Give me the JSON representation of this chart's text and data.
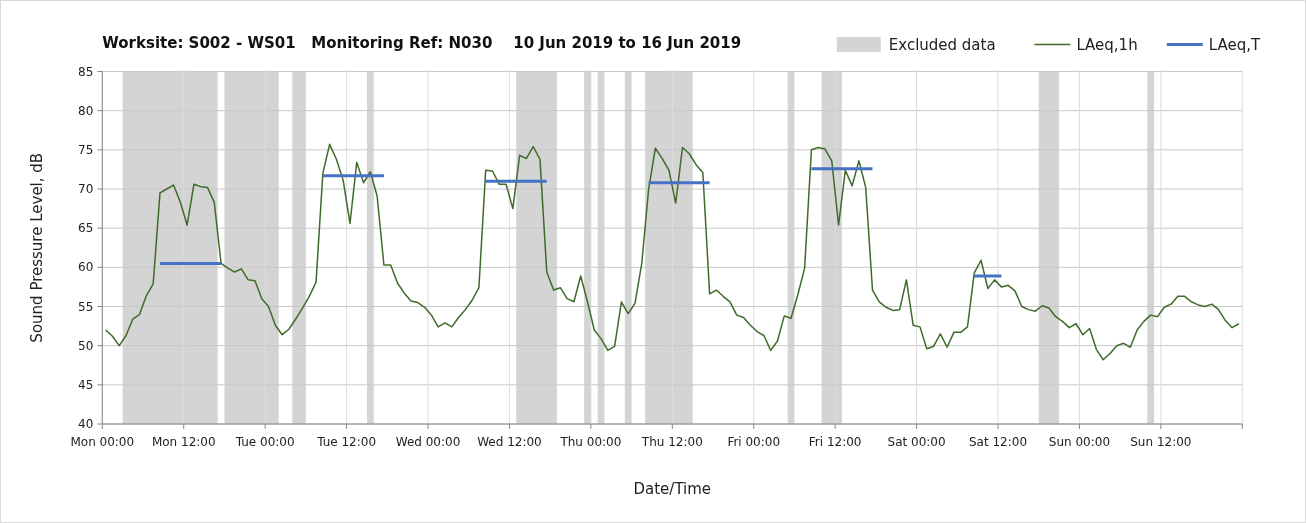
{
  "chart_data": {
    "type": "line",
    "title": "Worksite: S002 - WS01   Monitoring Ref: N030    10 Jun 2019 to 16 Jun 2019",
    "xlabel": "Date/Time",
    "ylabel": "Sound Pressure Level, dB",
    "xlim": [
      "2019-06-10T00:00",
      "2019-06-17T00:00"
    ],
    "xticks": [
      {
        "value": "2019-06-10T00:00",
        "label": "Mon 00:00"
      },
      {
        "value": "2019-06-10T12:00",
        "label": "Mon 12:00"
      },
      {
        "value": "2019-06-11T00:00",
        "label": "Tue 00:00"
      },
      {
        "value": "2019-06-11T12:00",
        "label": "Tue 12:00"
      },
      {
        "value": "2019-06-12T00:00",
        "label": "Wed 00:00"
      },
      {
        "value": "2019-06-12T12:00",
        "label": "Wed 12:00"
      },
      {
        "value": "2019-06-13T00:00",
        "label": "Thu 00:00"
      },
      {
        "value": "2019-06-13T12:00",
        "label": "Thu 12:00"
      },
      {
        "value": "2019-06-14T00:00",
        "label": "Fri 00:00"
      },
      {
        "value": "2019-06-14T12:00",
        "label": "Fri 12:00"
      },
      {
        "value": "2019-06-15T00:00",
        "label": "Sat 00:00"
      },
      {
        "value": "2019-06-15T12:00",
        "label": "Sat 12:00"
      },
      {
        "value": "2019-06-16T00:00",
        "label": "Sun 00:00"
      },
      {
        "value": "2019-06-16T12:00",
        "label": "Sun 12:00"
      },
      {
        "value": "2019-06-17T00:00",
        "label": null
      }
    ],
    "ylim": [
      40,
      85
    ],
    "yticks": [
      40,
      45,
      50,
      55,
      60,
      65,
      70,
      75,
      80,
      85
    ],
    "grid": true,
    "legend": "top right",
    "marker": "none",
    "bands": [
      {
        "axis": "x",
        "from": "2019-06-10T03:00",
        "to": "2019-06-10T17:00",
        "label": "Excluded data",
        "color": "#d4d4d4"
      },
      {
        "axis": "x",
        "from": "2019-06-10T18:00",
        "to": "2019-06-11T02:00",
        "color": "#d4d4d4"
      },
      {
        "axis": "x",
        "from": "2019-06-11T04:00",
        "to": "2019-06-11T06:00",
        "color": "#d4d4d4"
      },
      {
        "axis": "x",
        "from": "2019-06-11T15:00",
        "to": "2019-06-11T16:00",
        "color": "#d4d4d4"
      },
      {
        "axis": "x",
        "from": "2019-06-12T13:00",
        "to": "2019-06-12T19:00",
        "color": "#d4d4d4"
      },
      {
        "axis": "x",
        "from": "2019-06-12T23:00",
        "to": "2019-06-13T00:00",
        "color": "#d4d4d4"
      },
      {
        "axis": "x",
        "from": "2019-06-13T01:00",
        "to": "2019-06-13T02:00",
        "color": "#d4d4d4"
      },
      {
        "axis": "x",
        "from": "2019-06-13T05:00",
        "to": "2019-06-13T06:00",
        "color": "#d4d4d4"
      },
      {
        "axis": "x",
        "from": "2019-06-13T08:00",
        "to": "2019-06-13T15:00",
        "color": "#d4d4d4"
      },
      {
        "axis": "x",
        "from": "2019-06-14T05:00",
        "to": "2019-06-14T06:00",
        "color": "#d4d4d4"
      },
      {
        "axis": "x",
        "from": "2019-06-14T10:00",
        "to": "2019-06-14T13:00",
        "color": "#d4d4d4"
      },
      {
        "axis": "x",
        "from": "2019-06-15T18:00",
        "to": "2019-06-15T21:00",
        "color": "#d4d4d4"
      },
      {
        "axis": "x",
        "from": "2019-06-16T10:00",
        "to": "2019-06-16T11:00",
        "color": "#d4d4d4"
      }
    ],
    "series": [
      {
        "name": "LAeq,1h",
        "color": "#3f6b2a",
        "x": [
          "2019-06-10T00:30",
          "2019-06-10T01:30",
          "2019-06-10T02:30",
          "2019-06-10T03:30",
          "2019-06-10T04:30",
          "2019-06-10T05:30",
          "2019-06-10T06:30",
          "2019-06-10T07:30",
          "2019-06-10T08:30",
          "2019-06-10T09:30",
          "2019-06-10T10:30",
          "2019-06-10T11:30",
          "2019-06-10T12:30",
          "2019-06-10T13:30",
          "2019-06-10T14:30",
          "2019-06-10T15:30",
          "2019-06-10T16:30",
          "2019-06-10T17:30",
          "2019-06-10T18:30",
          "2019-06-10T19:30",
          "2019-06-10T20:30",
          "2019-06-10T21:30",
          "2019-06-10T22:30",
          "2019-06-10T23:30",
          "2019-06-11T00:30",
          "2019-06-11T01:30",
          "2019-06-11T02:30",
          "2019-06-11T03:30",
          "2019-06-11T04:30",
          "2019-06-11T05:30",
          "2019-06-11T06:30",
          "2019-06-11T07:30",
          "2019-06-11T08:30",
          "2019-06-11T09:30",
          "2019-06-11T10:30",
          "2019-06-11T11:30",
          "2019-06-11T12:30",
          "2019-06-11T13:30",
          "2019-06-11T14:30",
          "2019-06-11T15:30",
          "2019-06-11T16:30",
          "2019-06-11T17:30",
          "2019-06-11T18:30",
          "2019-06-11T19:30",
          "2019-06-11T20:30",
          "2019-06-11T21:30",
          "2019-06-11T22:30",
          "2019-06-11T23:30",
          "2019-06-12T00:30",
          "2019-06-12T01:30",
          "2019-06-12T02:30",
          "2019-06-12T03:30",
          "2019-06-12T04:30",
          "2019-06-12T05:30",
          "2019-06-12T06:30",
          "2019-06-12T07:30",
          "2019-06-12T08:30",
          "2019-06-12T09:30",
          "2019-06-12T10:30",
          "2019-06-12T11:30",
          "2019-06-12T12:30",
          "2019-06-12T13:30",
          "2019-06-12T14:30",
          "2019-06-12T15:30",
          "2019-06-12T16:30",
          "2019-06-12T17:30",
          "2019-06-12T18:30",
          "2019-06-12T19:30",
          "2019-06-12T20:30",
          "2019-06-12T21:30",
          "2019-06-12T22:30",
          "2019-06-12T23:30",
          "2019-06-13T00:30",
          "2019-06-13T01:30",
          "2019-06-13T02:30",
          "2019-06-13T03:30",
          "2019-06-13T04:30",
          "2019-06-13T05:30",
          "2019-06-13T06:30",
          "2019-06-13T07:30",
          "2019-06-13T08:30",
          "2019-06-13T09:30",
          "2019-06-13T10:30",
          "2019-06-13T11:30",
          "2019-06-13T12:30",
          "2019-06-13T13:30",
          "2019-06-13T14:30",
          "2019-06-13T15:30",
          "2019-06-13T16:30",
          "2019-06-13T17:30",
          "2019-06-13T18:30",
          "2019-06-13T19:30",
          "2019-06-13T20:30",
          "2019-06-13T21:30",
          "2019-06-13T22:30",
          "2019-06-13T23:30",
          "2019-06-14T00:30",
          "2019-06-14T01:30",
          "2019-06-14T02:30",
          "2019-06-14T03:30",
          "2019-06-14T04:30",
          "2019-06-14T05:30",
          "2019-06-14T06:30",
          "2019-06-14T07:30",
          "2019-06-14T08:30",
          "2019-06-14T09:30",
          "2019-06-14T10:30",
          "2019-06-14T11:30",
          "2019-06-14T12:30",
          "2019-06-14T13:30",
          "2019-06-14T14:30",
          "2019-06-14T15:30",
          "2019-06-14T16:30",
          "2019-06-14T17:30",
          "2019-06-14T18:30",
          "2019-06-14T19:30",
          "2019-06-14T20:30",
          "2019-06-14T21:30",
          "2019-06-14T22:30",
          "2019-06-14T23:30",
          "2019-06-15T00:30",
          "2019-06-15T01:30",
          "2019-06-15T02:30",
          "2019-06-15T03:30",
          "2019-06-15T04:30",
          "2019-06-15T05:30",
          "2019-06-15T06:30",
          "2019-06-15T07:30",
          "2019-06-15T08:30",
          "2019-06-15T09:30",
          "2019-06-15T10:30",
          "2019-06-15T11:30",
          "2019-06-15T12:30",
          "2019-06-15T13:30",
          "2019-06-15T14:30",
          "2019-06-15T15:30",
          "2019-06-15T16:30",
          "2019-06-15T17:30",
          "2019-06-15T18:30",
          "2019-06-15T19:30",
          "2019-06-15T20:30",
          "2019-06-15T21:30",
          "2019-06-15T22:30",
          "2019-06-15T23:30",
          "2019-06-16T00:30",
          "2019-06-16T01:30",
          "2019-06-16T02:30",
          "2019-06-16T03:30",
          "2019-06-16T04:30",
          "2019-06-16T05:30",
          "2019-06-16T06:30",
          "2019-06-16T07:30",
          "2019-06-16T08:30",
          "2019-06-16T09:30",
          "2019-06-16T10:30",
          "2019-06-16T11:30",
          "2019-06-16T12:30",
          "2019-06-16T13:30",
          "2019-06-16T14:30",
          "2019-06-16T15:30",
          "2019-06-16T16:30",
          "2019-06-16T17:30",
          "2019-06-16T18:30",
          "2019-06-16T19:30",
          "2019-06-16T20:30",
          "2019-06-16T21:30",
          "2019-06-16T22:30",
          "2019-06-16T23:30"
        ],
        "values": [
          52.0,
          51.2,
          50.0,
          51.3,
          53.4,
          54.0,
          56.4,
          57.9,
          69.5,
          70.0,
          70.5,
          68.3,
          65.4,
          70.6,
          70.3,
          70.2,
          68.3,
          60.5,
          59.9,
          59.4,
          59.8,
          58.4,
          58.3,
          56.0,
          55.0,
          52.6,
          51.4,
          52.1,
          53.4,
          54.8,
          56.3,
          58.1,
          72.0,
          75.7,
          73.8,
          71.1,
          65.6,
          73.4,
          70.8,
          72.2,
          69.1,
          60.3,
          60.3,
          58.0,
          56.7,
          55.7,
          55.5,
          54.9,
          53.9,
          52.4,
          52.9,
          52.4,
          53.6,
          54.6,
          55.8,
          57.4,
          72.4,
          72.3,
          70.6,
          70.6,
          67.5,
          74.3,
          73.9,
          75.4,
          73.8,
          59.4,
          57.1,
          57.4,
          56.0,
          55.6,
          58.9,
          55.6,
          52.0,
          50.9,
          49.4,
          49.9,
          55.6,
          54.1,
          55.4,
          60.5,
          69.9,
          75.2,
          73.9,
          72.4,
          68.2,
          75.3,
          74.5,
          73.1,
          72.1,
          56.6,
          57.1,
          56.3,
          55.6,
          53.9,
          53.6,
          52.6,
          51.8,
          51.3,
          49.4,
          50.6,
          53.8,
          53.5,
          56.5,
          59.9,
          75.0,
          75.3,
          75.1,
          73.6,
          65.4,
          72.4,
          70.4,
          73.6,
          70.2,
          57.1,
          55.6,
          54.9,
          54.5,
          54.6,
          58.4,
          52.6,
          52.4,
          49.6,
          49.9,
          51.5,
          49.8,
          51.7,
          51.7,
          52.4,
          59.3,
          60.9,
          57.3,
          58.4,
          57.5,
          57.7,
          57.0,
          55.0,
          54.6,
          54.4,
          55.1,
          54.8,
          53.7,
          53.1,
          52.3,
          52.8,
          51.4,
          52.2,
          49.5,
          48.2,
          49.0,
          50.0,
          50.3,
          49.8,
          52.0,
          53.1,
          53.9,
          53.7,
          54.9,
          55.3,
          56.3,
          56.3,
          55.6,
          55.2,
          55.0,
          55.3,
          54.6,
          53.2,
          52.3,
          52.8
        ]
      },
      {
        "name": "LAeq,T",
        "color": "#4472c4",
        "x": [
          "2019-06-10T08:30",
          "2019-06-10T17:30",
          "2019-06-11T01:00",
          "2019-06-11T08:30",
          "2019-06-11T17:30",
          "2019-06-12T01:00",
          "2019-06-12T08:30",
          "2019-06-12T17:30",
          "2019-06-13T01:00",
          "2019-06-13T08:30",
          "2019-06-13T17:30",
          "2019-06-14T01:00",
          "2019-06-14T08:30",
          "2019-06-14T17:30",
          "2019-06-15T01:00",
          "2019-06-15T08:30",
          "2019-06-15T12:30"
        ],
        "values": [
          60.5,
          60.5,
          null,
          71.7,
          71.7,
          null,
          71.0,
          71.0,
          null,
          70.8,
          70.8,
          null,
          72.6,
          72.6,
          null,
          58.9,
          58.9
        ]
      }
    ]
  }
}
